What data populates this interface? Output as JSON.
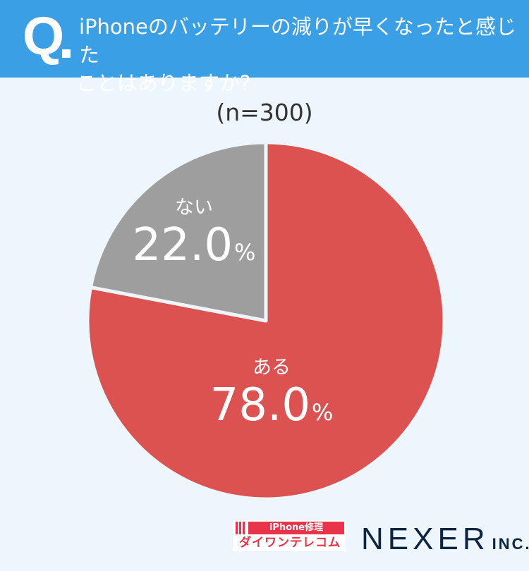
{
  "header": {
    "q_mark": "Q",
    "question_line1": "iPhoneのバッテリーの減りが早くなったと感じた",
    "question_line2": "ことはありますか?"
  },
  "sample_size": "(n=300)",
  "colors": {
    "header_bg": "#3a9fe4",
    "page_bg": "#eef6fd",
    "yes": "#dc5251",
    "no": "#9e9e9e"
  },
  "chart_data": {
    "type": "pie",
    "title": "iPhoneのバッテリーの減りが早くなったと感じたことはありますか?",
    "subtitle": "(n=300)",
    "categories": [
      "ある",
      "ない"
    ],
    "values": [
      78.0,
      22.0
    ],
    "unit": "%",
    "colors": [
      "#dc5251",
      "#9e9e9e"
    ],
    "start_angle": "12 o'clock, clockwise",
    "legend": "none (labels inside slices)"
  },
  "labels": {
    "yes": {
      "category": "ある",
      "value": "78.0",
      "unit": "%"
    },
    "no": {
      "category": "ない",
      "value": "22.0",
      "unit": "%"
    }
  },
  "footer": {
    "sponsor_top": "iPhone修理",
    "sponsor_bottom": "ダイワンテレコム",
    "company": "NEXER",
    "company_suffix": "INC."
  }
}
